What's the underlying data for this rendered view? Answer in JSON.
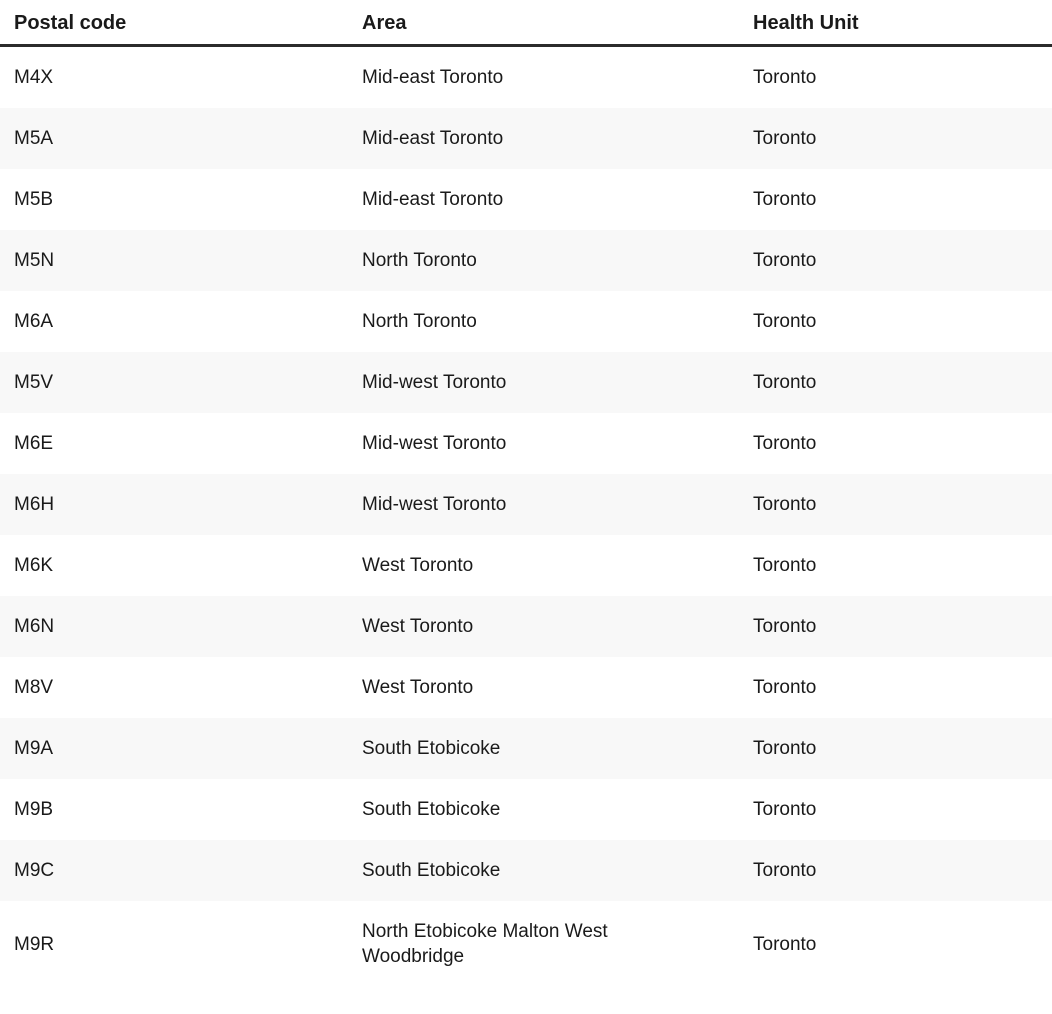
{
  "colors": {
    "stripe": "#f8f8f8",
    "header_rule": "#2b2b2b",
    "text": "#1a1a1a",
    "background": "#ffffff"
  },
  "table": {
    "columns": [
      {
        "key": "postal-code",
        "label": "Postal code"
      },
      {
        "key": "area",
        "label": "Area"
      },
      {
        "key": "health-unit",
        "label": "Health Unit"
      }
    ],
    "rows": [
      [
        "M4X",
        "Mid-east Toronto",
        "Toronto"
      ],
      [
        "M5A",
        "Mid-east Toronto",
        "Toronto"
      ],
      [
        "M5B",
        "Mid-east Toronto",
        "Toronto"
      ],
      [
        "M5N",
        "North Toronto",
        "Toronto"
      ],
      [
        "M6A",
        "North Toronto",
        "Toronto"
      ],
      [
        "M5V",
        "Mid-west Toronto",
        "Toronto"
      ],
      [
        "M6E",
        "Mid-west Toronto",
        "Toronto"
      ],
      [
        "M6H",
        "Mid-west Toronto",
        "Toronto"
      ],
      [
        "M6K",
        "West Toronto",
        "Toronto"
      ],
      [
        "M6N",
        "West Toronto",
        "Toronto"
      ],
      [
        "M8V",
        "West Toronto",
        "Toronto"
      ],
      [
        "M9A",
        "South Etobicoke",
        "Toronto"
      ],
      [
        "M9B",
        "South Etobicoke",
        "Toronto"
      ],
      [
        "M9C",
        "South Etobicoke",
        "Toronto"
      ],
      [
        "M9R",
        "North Etobicoke Malton West Woodbridge",
        "Toronto"
      ]
    ]
  }
}
